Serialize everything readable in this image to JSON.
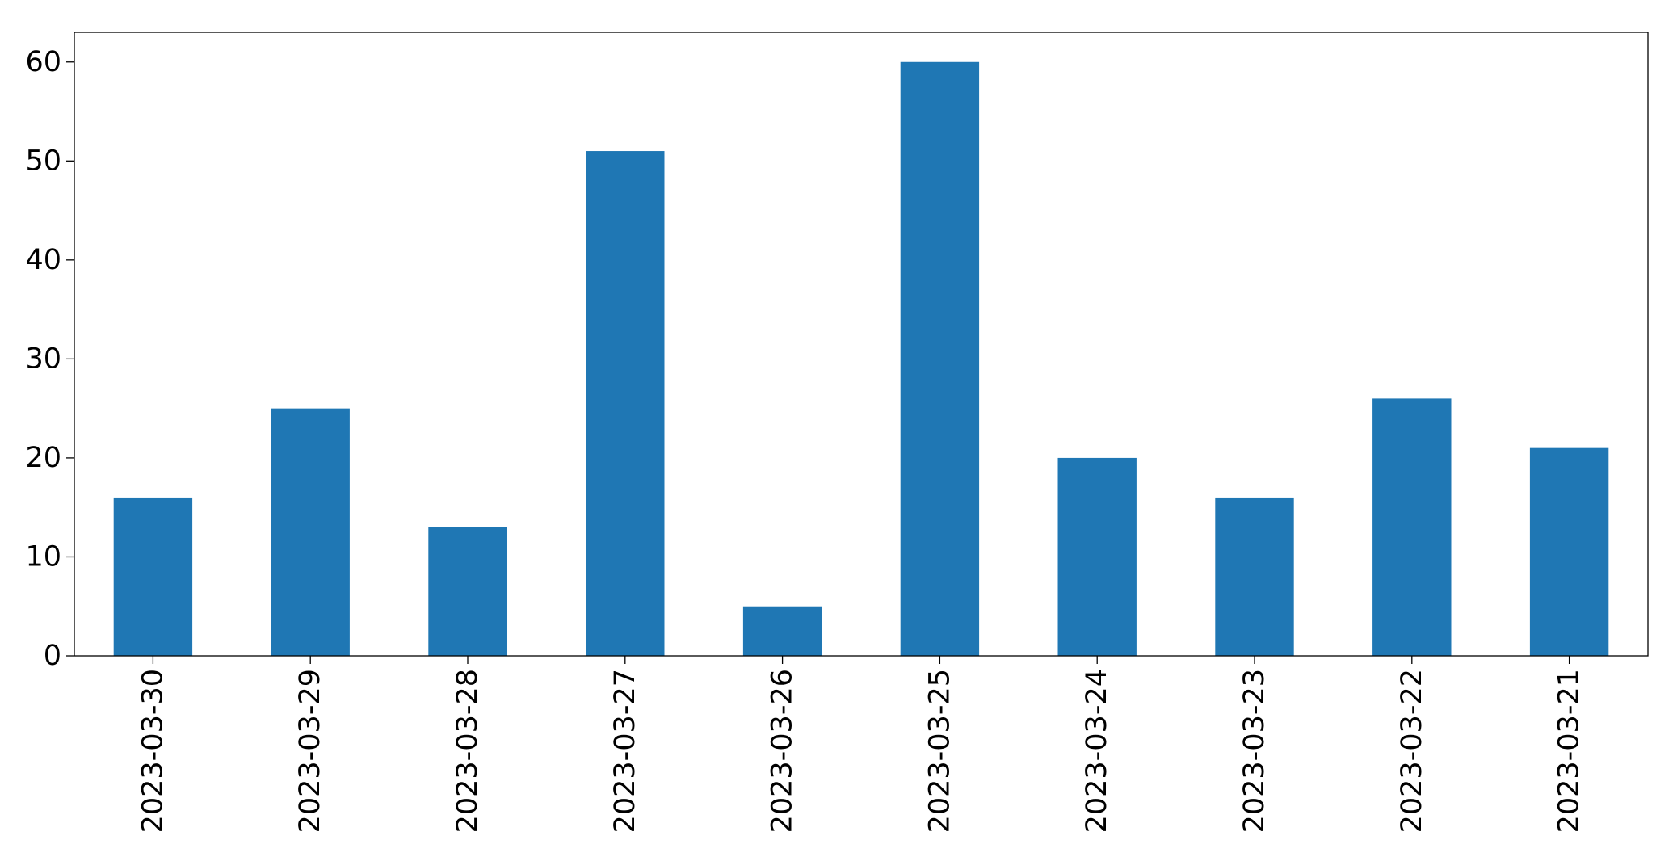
{
  "chart_data": {
    "type": "bar",
    "categories": [
      "2023-03-30",
      "2023-03-29",
      "2023-03-28",
      "2023-03-27",
      "2023-03-26",
      "2023-03-25",
      "2023-03-24",
      "2023-03-23",
      "2023-03-22",
      "2023-03-21"
    ],
    "values": [
      16,
      25,
      13,
      51,
      5,
      60,
      20,
      16,
      26,
      21
    ],
    "title": "",
    "xlabel": "",
    "ylabel": "",
    "ylim": [
      0,
      63
    ],
    "yticks": [
      0,
      10,
      20,
      30,
      40,
      50,
      60
    ],
    "bar_color": "#1f77b4",
    "grid": false,
    "legend": false
  }
}
